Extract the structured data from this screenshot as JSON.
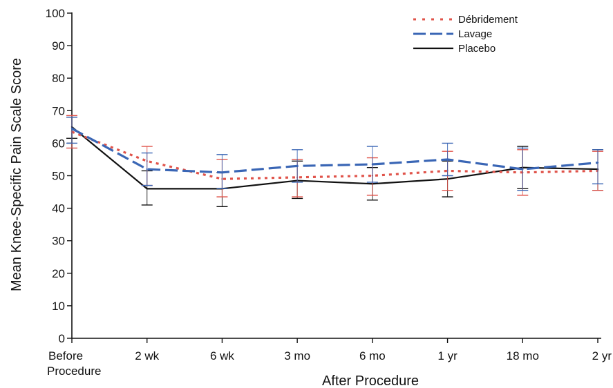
{
  "chart_data": {
    "type": "line",
    "xlabel": "After Procedure",
    "ylabel": "Mean Knee-Specific Pain Scale Score",
    "ylim": [
      0,
      100
    ],
    "yticks": [
      "0",
      "10",
      "20",
      "30",
      "40",
      "50",
      "60",
      "70",
      "80",
      "90",
      "100"
    ],
    "categories": [
      [
        "Before",
        "Procedure"
      ],
      [
        "2 wk"
      ],
      [
        "6 wk"
      ],
      [
        "3 mo"
      ],
      [
        "6 mo"
      ],
      [
        "1 yr"
      ],
      [
        "18 mo"
      ],
      [
        "2 yr"
      ]
    ],
    "legend_position": "top-right",
    "grid": false,
    "series": [
      {
        "name": "Débridement",
        "color": "#e0534a",
        "style": "dotted",
        "values": [
          63.5,
          54.5,
          49.0,
          49.5,
          50.0,
          51.5,
          51.0,
          51.5
        ],
        "error_low": [
          58.5,
          47.0,
          43.5,
          43.5,
          44.0,
          45.5,
          44.0,
          45.5
        ],
        "error_high": [
          68.5,
          59.0,
          55.0,
          55.0,
          55.5,
          57.5,
          58.0,
          57.5
        ]
      },
      {
        "name": "Lavage",
        "color": "#3a66b5",
        "style": "dashed",
        "values": [
          64.5,
          52.0,
          51.0,
          53.0,
          53.5,
          55.0,
          52.0,
          54.0
        ],
        "error_low": [
          60.0,
          47.0,
          46.0,
          48.0,
          48.0,
          50.0,
          45.5,
          47.5
        ],
        "error_high": [
          68.0,
          57.0,
          56.5,
          58.0,
          59.0,
          60.0,
          58.5,
          58.0
        ]
      },
      {
        "name": "Placebo",
        "color": "#111111",
        "style": "solid",
        "values": [
          65.0,
          46.0,
          46.0,
          48.5,
          47.5,
          49.0,
          52.5,
          52.0
        ],
        "error_low": [
          61.5,
          41.0,
          40.5,
          43.0,
          42.5,
          43.5,
          46.0,
          45.5
        ],
        "error_high": [
          68.0,
          51.5,
          51.0,
          54.5,
          52.5,
          54.5,
          59.0,
          58.0
        ]
      }
    ]
  }
}
